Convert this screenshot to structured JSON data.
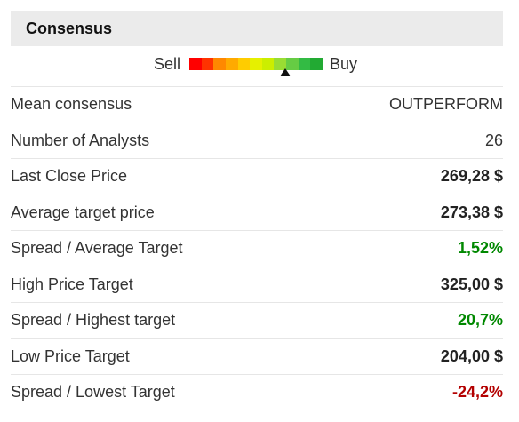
{
  "header": {
    "title": "Consensus"
  },
  "scale": {
    "sell_label": "Sell",
    "buy_label": "Buy",
    "segments": [
      "#ff0000",
      "#ff3300",
      "#ff8800",
      "#ffaa00",
      "#ffcc00",
      "#e6f000",
      "#ccee00",
      "#99dd33",
      "#66cc44",
      "#33bb44",
      "#22aa33"
    ],
    "pointer_position": 0.72
  },
  "rows": [
    {
      "label": "Mean consensus",
      "value": "OUTPERFORM",
      "style": "plain"
    },
    {
      "label": "Number of Analysts",
      "value": "26",
      "style": "plain"
    },
    {
      "label": "Last Close Price",
      "value": "269,28 $",
      "style": "bold"
    },
    {
      "label": "Average target price",
      "value": "273,38 $",
      "style": "bold"
    },
    {
      "label": "Spread / Average Target",
      "value": "1,52%",
      "style": "pos"
    },
    {
      "label": "High Price Target",
      "value": "325,00 $",
      "style": "bold"
    },
    {
      "label": "Spread / Highest target",
      "value": "20,7%",
      "style": "pos"
    },
    {
      "label": "Low Price Target",
      "value": "204,00 $",
      "style": "bold"
    },
    {
      "label": "Spread / Lowest Target",
      "value": "-24,2%",
      "style": "neg"
    }
  ]
}
